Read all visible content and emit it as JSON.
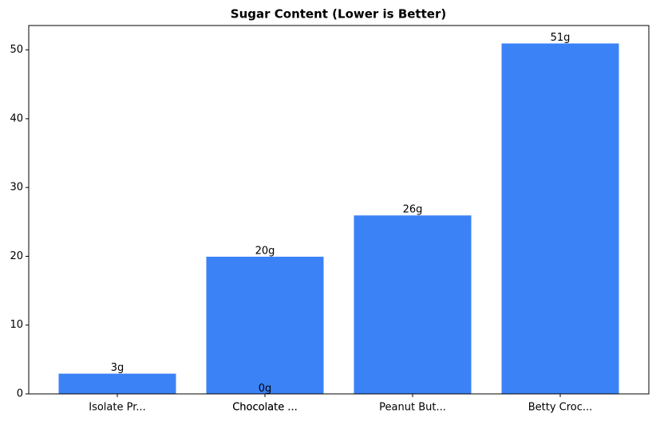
{
  "chart_data": {
    "type": "bar",
    "title": "Sugar Content (Lower is Better)",
    "categories": [
      "Isolate Pr...",
      "Chocolate ...",
      "Chocolate ...",
      "Peanut But...",
      "Betty Croc..."
    ],
    "values": [
      3,
      20,
      0,
      26,
      51
    ],
    "value_labels": [
      "3g",
      "20g",
      "0g",
      "26g",
      "51g"
    ],
    "color": "#3b82f6",
    "ylim": [
      0,
      53.55
    ],
    "yticks": [
      0,
      10,
      20,
      30,
      40,
      50
    ],
    "grid": false
  }
}
